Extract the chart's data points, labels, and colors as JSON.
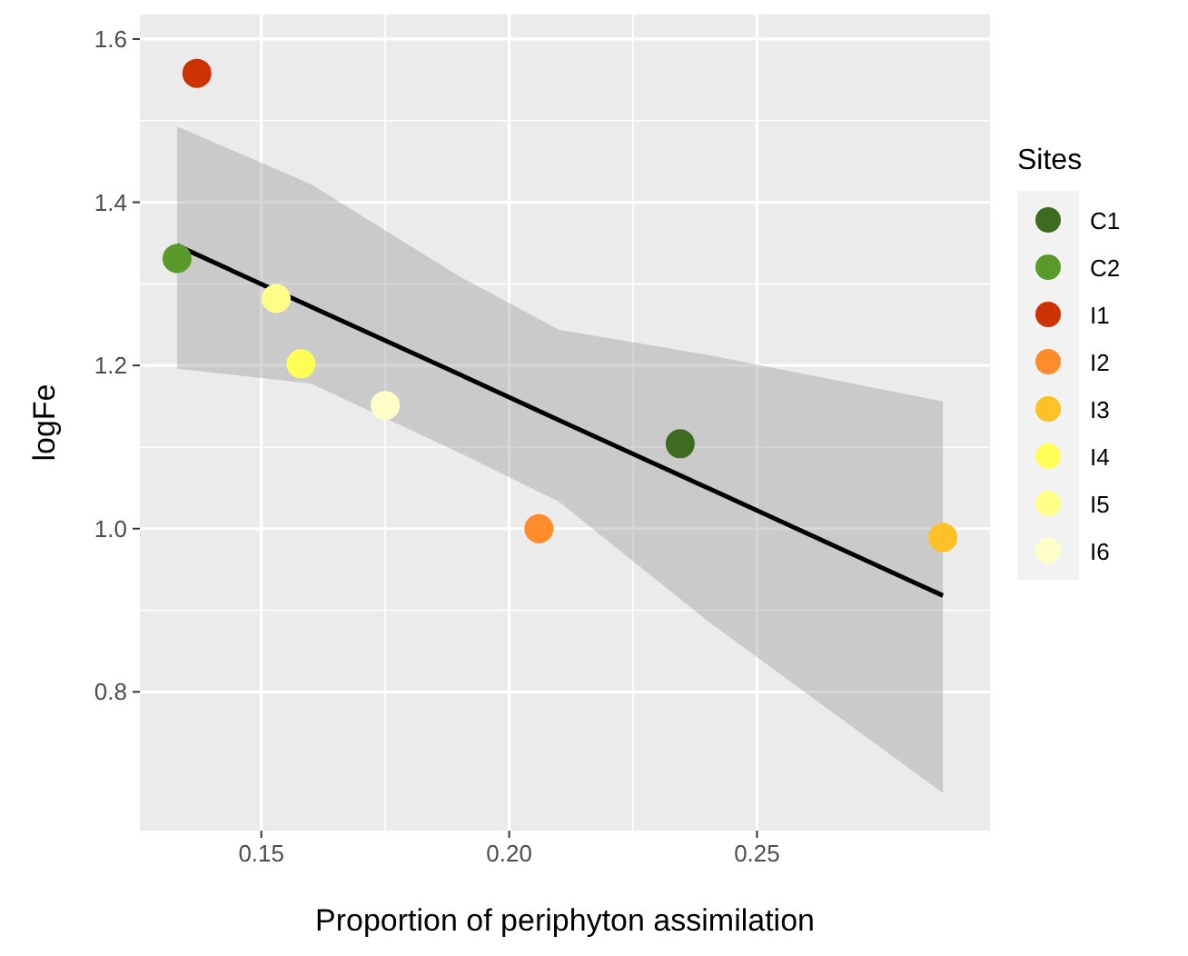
{
  "chart_data": {
    "type": "scatter",
    "xlabel": "Proportion of periphyton assimilation",
    "ylabel": "logFe",
    "legend_title": "Sites",
    "xlim": [
      0.1255,
      0.297
    ],
    "ylim": [
      0.63,
      1.63
    ],
    "xticks": [
      0.15,
      {
        "value": 0.2,
        "label": "0.20"
      },
      0.25
    ],
    "yticks": [
      0.8,
      {
        "value": 1,
        "label": "1.0"
      },
      1.2,
      1.4,
      1.6
    ],
    "grid": true,
    "legend": "right",
    "marker": "circle",
    "series": [
      {
        "type": "line",
        "marker": "none",
        "color": "#000000",
        "x": [
          0.133,
          0.16,
          0.19,
          0.21,
          0.24,
          0.2875
        ],
        "values": [
          1.347,
          1.272,
          1.189,
          1.133,
          1.05,
          0.918
        ],
        "lower": [
          1.196,
          1.178,
          1.093,
          1.033,
          0.887,
          0.676
        ],
        "upper": [
          1.493,
          1.422,
          1.309,
          1.244,
          1.213,
          1.156
        ]
      },
      {
        "name": "C1",
        "color": "#3d6b1f",
        "x": [
          0.2345
        ],
        "values": [
          1.104
        ]
      },
      {
        "name": "C2",
        "color": "#5a9a2a",
        "x": [
          0.133
        ],
        "values": [
          1.331
        ]
      },
      {
        "name": "I1",
        "color": "#cc3300",
        "x": [
          0.137
        ],
        "values": [
          1.558
        ]
      },
      {
        "name": "I2",
        "color": "#ff8c2a",
        "x": [
          0.206
        ],
        "values": [
          1.0
        ]
      },
      {
        "name": "I3",
        "color": "#ffc125",
        "x": [
          0.2875
        ],
        "values": [
          0.989
        ]
      },
      {
        "name": "I4",
        "color": "#ffff55",
        "x": [
          0.158
        ],
        "values": [
          1.202
        ]
      },
      {
        "name": "I5",
        "color": "#ffff88",
        "x": [
          0.153
        ],
        "values": [
          1.282
        ]
      },
      {
        "name": "I6",
        "color": "#ffffc8",
        "x": [
          0.175
        ],
        "values": [
          1.151
        ]
      }
    ]
  }
}
